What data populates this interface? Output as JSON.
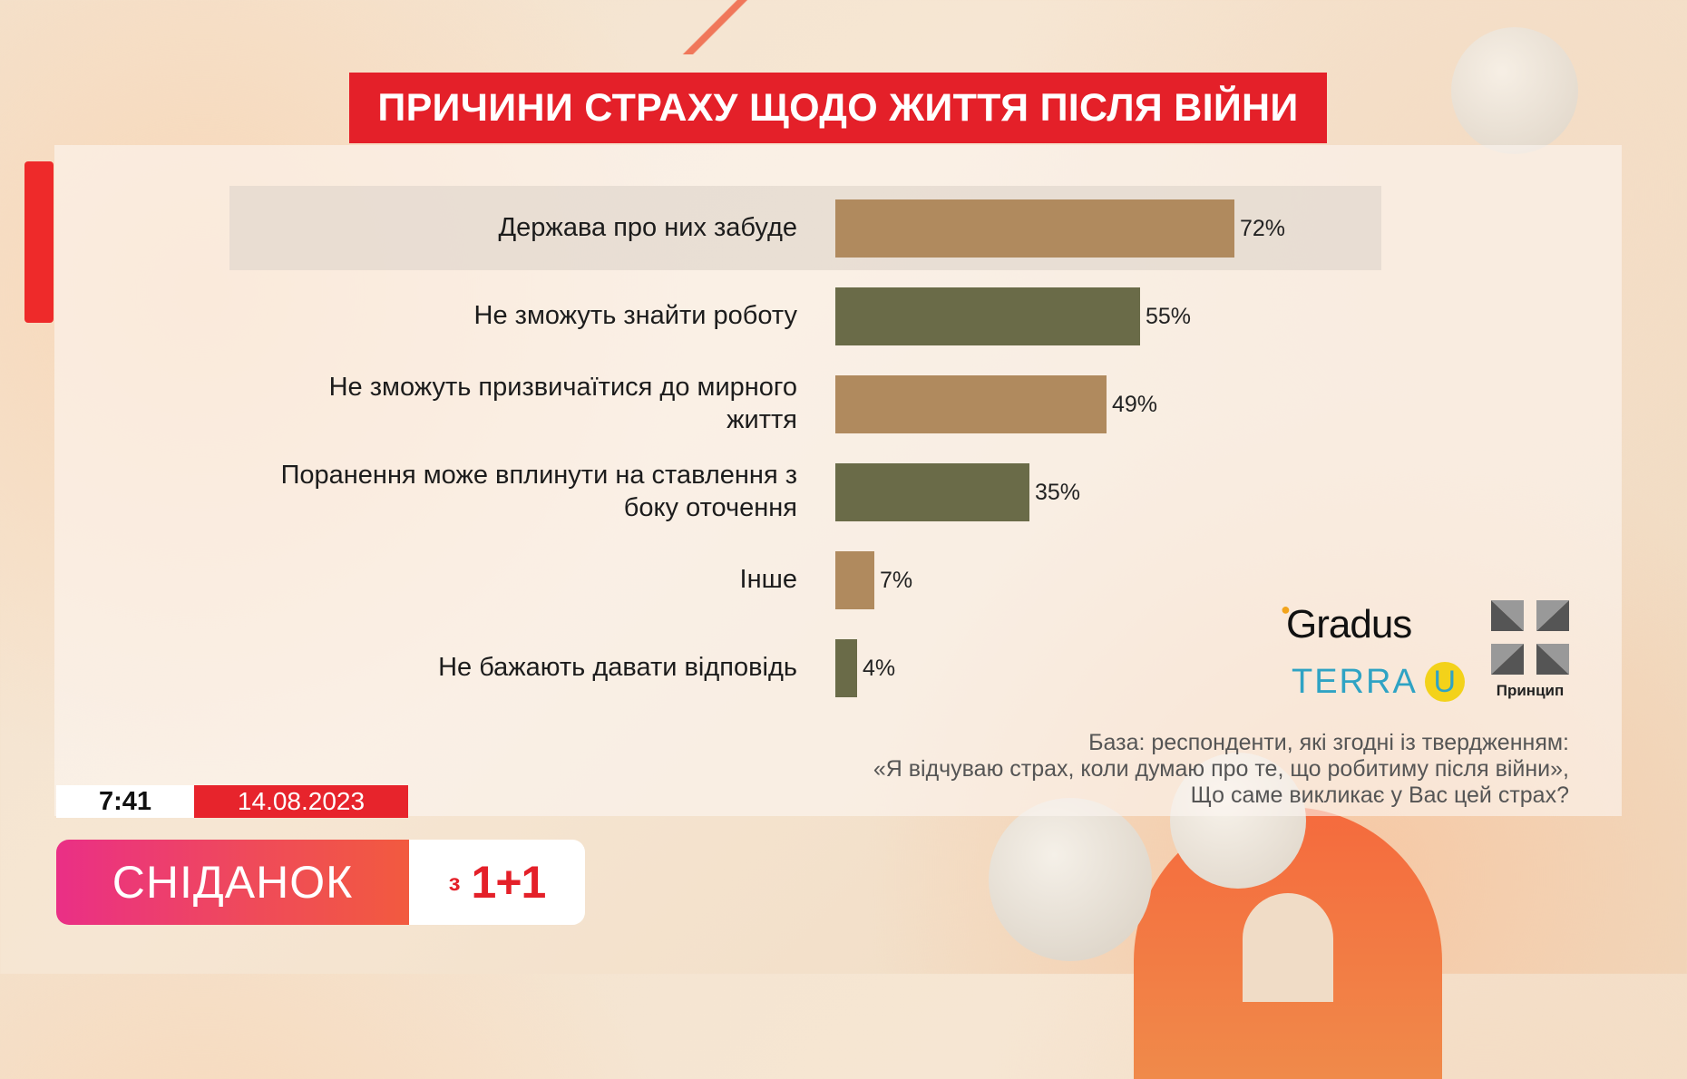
{
  "title": "ПРИЧИНИ СТРАХУ ЩОДО ЖИТТЯ ПІСЛЯ ВІЙНИ",
  "chart_data": {
    "type": "bar",
    "orientation": "horizontal",
    "title": "ПРИЧИНИ СТРАХУ ЩОДО ЖИТТЯ ПІСЛЯ ВІЙНИ",
    "categories": [
      "Держава про них забуде",
      "Не зможуть знайти роботу",
      "Не зможуть призвичаїтися до мирного життя",
      "Поранення може вплинути на ставлення з боку оточення",
      "Інше",
      "Не бажають давати відповідь"
    ],
    "category_lines": [
      [
        "Держава про них забуде"
      ],
      [
        "Не зможуть знайти роботу"
      ],
      [
        "Не зможуть призвичаїтися до мирного",
        "життя"
      ],
      [
        "Поранення може вплинути на ставлення з",
        "боку оточення"
      ],
      [
        "Інше"
      ],
      [
        "Не бажають давати відповідь"
      ]
    ],
    "values": [
      72,
      55,
      49,
      35,
      7,
      4
    ],
    "value_labels": [
      "72%",
      "55%",
      "49%",
      "35%",
      "7%",
      "4%"
    ],
    "bar_colors": [
      "#b08a5e",
      "#6a6b48",
      "#b08a5e",
      "#6a6b48",
      "#b08a5e",
      "#6a6b48"
    ],
    "highlighted_category": "Держава про них забуде",
    "xlim": [
      0,
      100
    ],
    "grid": false,
    "legend": false
  },
  "logos": {
    "gradus": "Gradus",
    "terra": "TERRA",
    "terra_u": "U",
    "pryntsyp_caption": "Принцип"
  },
  "base_note": [
    "База: респонденти, які згодні із твердженням:",
    "«Я відчуваю страх, коли думаю про те, що робитиму після війни»,",
    "Що саме викликає у Вас цей страх?"
  ],
  "lower_third": {
    "time": "7:41",
    "date": "14.08.2023",
    "show": "СНІДАНОК",
    "with": "з",
    "channel": "1+1"
  },
  "colors": {
    "title_red": "#e42029",
    "bar_brown": "#b08a5e",
    "bar_olive": "#6a6b48"
  }
}
